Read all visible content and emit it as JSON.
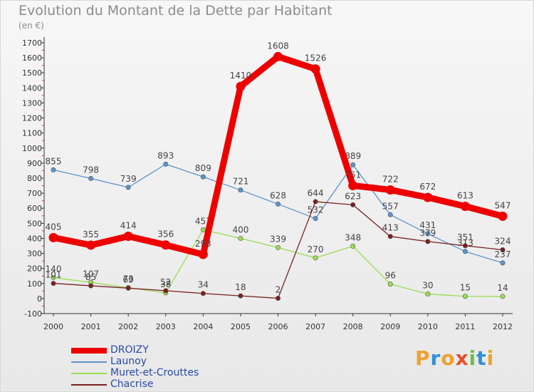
{
  "header": {
    "title": "Evolution du Montant de la Dette par Habitant",
    "subtitle": "(en €)"
  },
  "logo": {
    "letters": [
      "P",
      "r",
      "o",
      "x",
      "i",
      "t",
      "i"
    ],
    "colors": [
      "#f0a030",
      "#2f8fd8",
      "#f0a030",
      "#e8502a",
      "#6cc040",
      "#2f8fd8",
      "#f0a030"
    ]
  },
  "chart_data": {
    "type": "line",
    "title": "Evolution du Montant de la Dette par Habitant",
    "subtitle": "(en €)",
    "x": [
      "2000",
      "2001",
      "2002",
      "2003",
      "2004",
      "2005",
      "2006",
      "2007",
      "2008",
      "2009",
      "2010",
      "2011",
      "2012"
    ],
    "ylim": [
      -100,
      1700
    ],
    "yticks": [
      -100,
      0,
      100,
      200,
      300,
      400,
      500,
      600,
      700,
      800,
      900,
      1000,
      1100,
      1200,
      1300,
      1400,
      1500,
      1600,
      1700
    ],
    "grid": false,
    "legend_position": "bottom-left",
    "series": [
      {
        "name": "DROIZY",
        "color": "#ee0000",
        "emphasis": true,
        "values": [
          405,
          355,
          414,
          356,
          293,
          1410,
          1608,
          1526,
          751,
          722,
          672,
          613,
          547
        ],
        "labels": [
          "405",
          "355",
          "414",
          "356",
          "293",
          "1410",
          "1608",
          "1526",
          "751",
          "722",
          "672",
          "613",
          "547"
        ]
      },
      {
        "name": "Launoy",
        "color": "#5b95cc",
        "values": [
          855,
          798,
          739,
          893,
          809,
          721,
          628,
          532,
          889,
          557,
          431,
          313,
          237
        ],
        "labels": [
          "855",
          "798",
          "739",
          "893",
          "809",
          "721",
          "628",
          "532",
          "889",
          "557",
          "431",
          "313",
          "237"
        ]
      },
      {
        "name": "Muret-et-Crouttes",
        "color": "#99dd55",
        "values": [
          140,
          107,
          73,
          38,
          457,
          400,
          339,
          270,
          348,
          96,
          30,
          15,
          14
        ],
        "labels": [
          "140",
          "107",
          "73",
          "38",
          "457",
          "400",
          "339",
          "270",
          "348",
          "96",
          "30",
          "15",
          "14"
        ]
      },
      {
        "name": "Chacrise",
        "color": "#7a2020",
        "values": [
          101,
          85,
          69,
          52,
          34,
          18,
          2,
          644,
          623,
          413,
          379,
          351,
          324
        ],
        "labels": [
          "101",
          "85",
          "69",
          "52",
          "34",
          "18",
          "2",
          "644",
          "623",
          "413",
          "379",
          "351",
          "324"
        ]
      }
    ]
  }
}
